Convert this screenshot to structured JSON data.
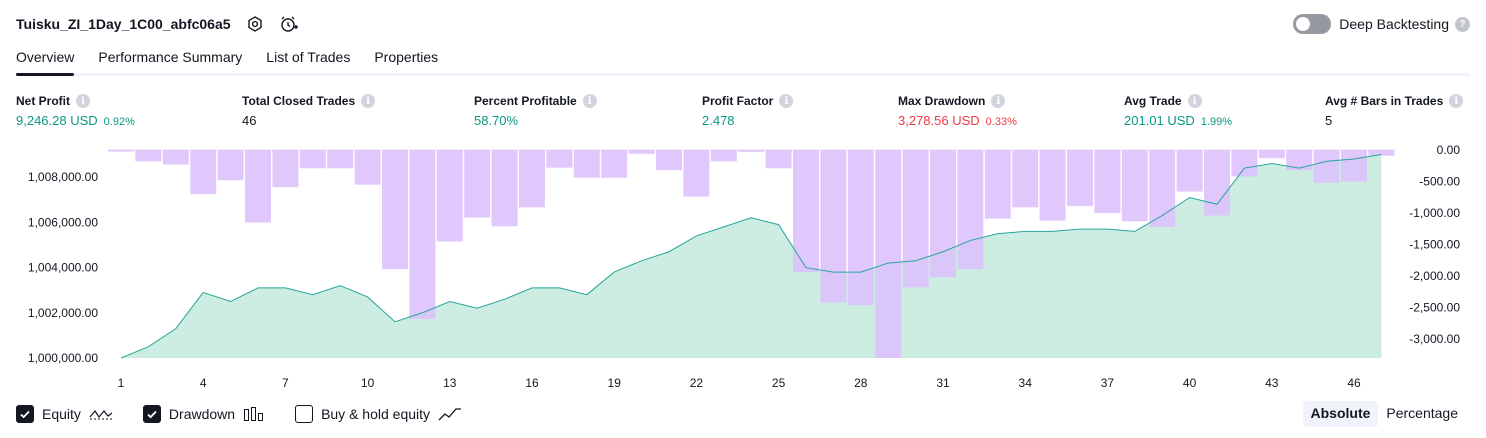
{
  "header": {
    "strategy_name": "Tuisku_ZI_1Day_1C00_abfc06a5",
    "deep_backtesting_label": "Deep Backtesting"
  },
  "tabs": [
    {
      "label": "Overview",
      "active": true
    },
    {
      "label": "Performance Summary",
      "active": false
    },
    {
      "label": "List of Trades",
      "active": false
    },
    {
      "label": "Properties",
      "active": false
    }
  ],
  "metrics": {
    "net_profit": {
      "label": "Net Profit",
      "value": "9,246.28 USD",
      "pct": "0.92%"
    },
    "total_closed_trades": {
      "label": "Total Closed Trades",
      "value": "46"
    },
    "percent_profitable": {
      "label": "Percent Profitable",
      "value": "58.70%"
    },
    "profit_factor": {
      "label": "Profit Factor",
      "value": "2.478"
    },
    "max_drawdown": {
      "label": "Max Drawdown",
      "value": "3,278.56 USD",
      "pct": "0.33%"
    },
    "avg_trade": {
      "label": "Avg Trade",
      "value": "201.01 USD",
      "pct": "1.99%"
    },
    "avg_bars": {
      "label": "Avg # Bars in Trades",
      "value": "5"
    }
  },
  "colors": {
    "equity_line": "#26a69a",
    "equity_fill": "#c8ebe0",
    "drawdown_bar": "#dcbefc",
    "positive": "#089981",
    "negative": "#f23645"
  },
  "legend": {
    "equity": {
      "label": "Equity",
      "checked": true,
      "icon": "equity-line-icon"
    },
    "drawdown": {
      "label": "Drawdown",
      "checked": true,
      "icon": "drawdown-bars-icon"
    },
    "buy_hold": {
      "label": "Buy & hold equity",
      "checked": false,
      "icon": "buy-hold-line-icon"
    }
  },
  "modes": {
    "absolute": "Absolute",
    "percentage": "Percentage",
    "selected": "absolute"
  },
  "chart_data": {
    "type": "line",
    "x_ticks": [
      "1",
      "4",
      "7",
      "10",
      "13",
      "16",
      "19",
      "22",
      "25",
      "28",
      "31",
      "34",
      "37",
      "40",
      "43",
      "46"
    ],
    "left_axis": {
      "ticks": [
        "1,000,000.00",
        "1,002,000.00",
        "1,004,000.00",
        "1,006,000.00",
        "1,008,000.00"
      ],
      "ylim": [
        1000000,
        1009200
      ]
    },
    "right_axis": {
      "ticks": [
        "0.00",
        "-500.00",
        "-1,000.00",
        "-1,500.00",
        "-2,000.00",
        "-2,500.00",
        "-3,000.00"
      ],
      "ylim": [
        -3300,
        0
      ]
    },
    "x": [
      1,
      2,
      3,
      4,
      5,
      6,
      7,
      8,
      9,
      10,
      11,
      12,
      13,
      14,
      15,
      16,
      17,
      18,
      19,
      20,
      21,
      22,
      23,
      24,
      25,
      26,
      27,
      28,
      29,
      30,
      31,
      32,
      33,
      34,
      35,
      36,
      37,
      38,
      39,
      40,
      41,
      42,
      43,
      44,
      45,
      46,
      47
    ],
    "series": [
      {
        "key": "equity",
        "values": [
          1000000,
          1000500,
          1001300,
          1002900,
          1002500,
          1003100,
          1003100,
          1002800,
          1003200,
          1002700,
          1001600,
          1002000,
          1002500,
          1002200,
          1002600,
          1003100,
          1003100,
          1002800,
          1003800,
          1004300,
          1004700,
          1005400,
          1005800,
          1006200,
          1005900,
          1004000,
          1003800,
          1003800,
          1004200,
          1004300,
          1004700,
          1005200,
          1005500,
          1005600,
          1005600,
          1005700,
          1005700,
          1005600,
          1006300,
          1007100,
          1006800,
          1008400,
          1008600,
          1008400,
          1008700,
          1008800,
          1009000
        ]
      },
      {
        "key": "drawdown",
        "values": [
          -25,
          -180,
          -230,
          -700,
          -480,
          -1150,
          -590,
          -290,
          -290,
          -550,
          -1890,
          -2680,
          -1450,
          -1070,
          -1210,
          -910,
          -280,
          -440,
          -440,
          -60,
          -320,
          -740,
          -180,
          -30,
          -290,
          -1940,
          -2420,
          -2460,
          -3300,
          -2180,
          -2020,
          -1890,
          -1090,
          -910,
          -1120,
          -890,
          -1000,
          -1130,
          -1220,
          -660,
          -1040,
          -420,
          -130,
          -320,
          -520,
          -500,
          -90
        ]
      }
    ]
  }
}
